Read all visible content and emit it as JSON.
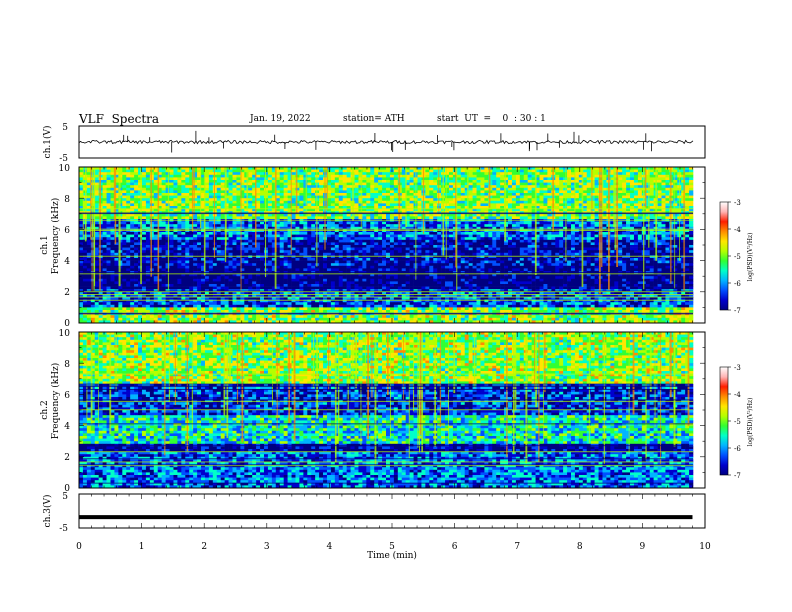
{
  "header": {
    "title": "VLF  Spectra",
    "date": "Jan. 19, 2022",
    "station": "station= ATH",
    "start": "start  UT  =    0  : 30 : 1"
  },
  "chart_data": [
    {
      "type": "line",
      "panel": "ch1-waveform",
      "ylabel": "ch.1(V)",
      "yticks": [
        "5",
        "-5"
      ],
      "ylim": [
        -5,
        5
      ],
      "description_values": {
        "baseline_v": 0,
        "typical_noise_v": 0.5,
        "spikes_v": [
          -3.5,
          3.5
        ]
      }
    },
    {
      "type": "heatmap",
      "panel": "ch1-spectrogram",
      "ylabel": [
        "ch.1",
        "Frequency  (kHz)"
      ],
      "yticks": [
        "0",
        "2",
        "4",
        "6",
        "8",
        "10"
      ],
      "ylim": [
        0,
        10
      ],
      "xlim": [
        0,
        9.8
      ],
      "colorbar": {
        "label": "log(PSD)(V²/Hz)",
        "ticks": [
          "-3",
          "-4",
          "-5",
          "-6",
          "-7"
        ],
        "range": [
          -7,
          -3
        ]
      },
      "bands_khz": [
        {
          "from": 0,
          "to": 1.0,
          "level": -4.8
        },
        {
          "from": 1.0,
          "to": 2.2,
          "level": -6.2
        },
        {
          "from": 2.2,
          "to": 3.6,
          "level": -6.9
        },
        {
          "from": 3.6,
          "to": 5.4,
          "level": -6.6
        },
        {
          "from": 5.4,
          "to": 6.6,
          "level": -6.0
        },
        {
          "from": 6.6,
          "to": 10,
          "level": -4.9
        }
      ]
    },
    {
      "type": "heatmap",
      "panel": "ch2-spectrogram",
      "ylabel": [
        "ch.2",
        "Frequency  (kHz)"
      ],
      "yticks": [
        "0",
        "2",
        "4",
        "6",
        "8",
        "10"
      ],
      "ylim": [
        0,
        10
      ],
      "xlim": [
        0,
        9.8
      ],
      "colorbar": {
        "label": "log(PSD)(V²/Hz)",
        "ticks": [
          "-3",
          "-4",
          "-5",
          "-6",
          "-7"
        ],
        "range": [
          -7,
          -3
        ]
      },
      "bands_khz": [
        {
          "from": 0,
          "to": 2.3,
          "level": -6.0
        },
        {
          "from": 2.3,
          "to": 2.8,
          "level": -6.8
        },
        {
          "from": 2.8,
          "to": 4.6,
          "level": -5.4
        },
        {
          "from": 4.6,
          "to": 6.6,
          "level": -6.3
        },
        {
          "from": 6.6,
          "to": 10,
          "level": -4.8
        }
      ]
    },
    {
      "type": "line",
      "panel": "ch3-waveform",
      "ylabel": "ch.3(V)",
      "yticks": [
        "5",
        "0",
        "-5"
      ],
      "ylim": [
        -5,
        5
      ],
      "xlabel": "Time  (min)",
      "xticks": [
        "0",
        "1",
        "2",
        "3",
        "4",
        "5",
        "6",
        "7",
        "8",
        "9",
        "10"
      ],
      "xlim": [
        0,
        10
      ],
      "series": [
        {
          "x": [
            0,
            9.8
          ],
          "values": [
            -1.8,
            -1.8
          ]
        }
      ]
    }
  ],
  "colors": {
    "colormap": [
      "#000080",
      "#0000cd",
      "#0050ff",
      "#00b4ff",
      "#00ffc8",
      "#32ff32",
      "#b4ff00",
      "#ffe600",
      "#ff8c00",
      "#ff1e00",
      "#ffb4b4",
      "#ffffff"
    ],
    "axis": "#000000",
    "trace": "#000000"
  }
}
